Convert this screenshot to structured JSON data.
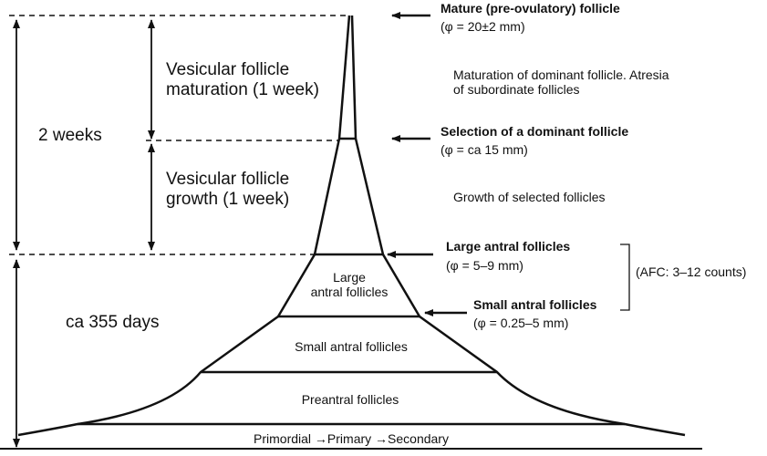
{
  "timeline": {
    "two_weeks": "2 weeks",
    "ca_355_days": "ca 355 days",
    "maturation_line1": "Vesicular follicle",
    "maturation_line2": "maturation (1 week)",
    "growth_line1": "Vesicular follicle",
    "growth_line2": "growth (1 week)"
  },
  "pyramid": {
    "large_antral_line1": "Large",
    "large_antral_line2": "antral follicles",
    "small_antral": "Small antral follicles",
    "preantral": "Preantral follicles",
    "primordial": "Primordial →Primary →Secondary"
  },
  "annotations": {
    "mature_title": "Mature (pre-ovulatory) follicle",
    "mature_size": "(φ = 20±2 mm)",
    "maturation_desc_line1": "Maturation of dominant follicle. Atresia",
    "maturation_desc_line2": "of subordinate follicles",
    "selection_title": "Selection of a dominant follicle",
    "selection_size": "(φ = ca 15 mm)",
    "growth_desc": "Growth of selected follicles",
    "large_antral_title": "Large antral follicles",
    "large_antral_size": "(φ = 5–9 mm)",
    "afc": "(AFC: 3–12 counts)",
    "small_antral_title": "Small antral follicles",
    "small_antral_size": "(φ = 0.25–5 mm)"
  }
}
